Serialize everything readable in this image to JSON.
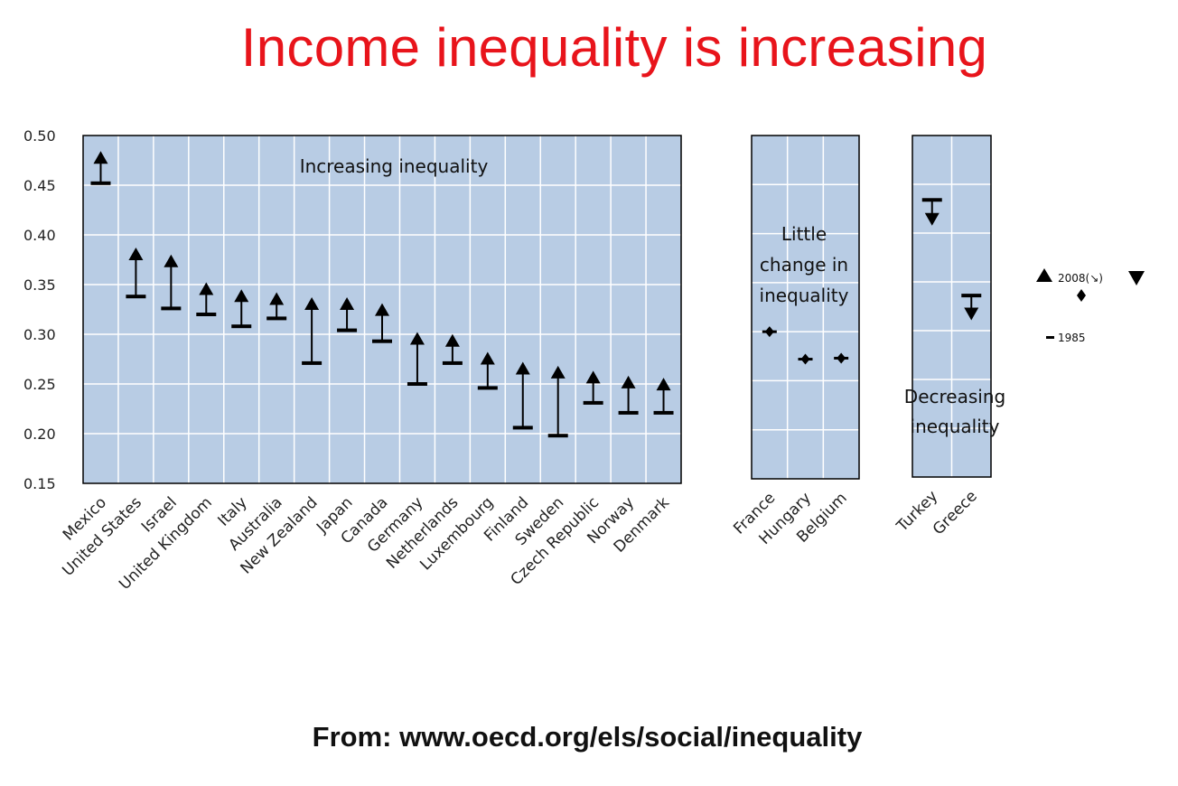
{
  "title": "Income inequality is increasing",
  "source": "From: www.oecd.org/els/social/inequality",
  "chart_data": {
    "type": "range-markers",
    "ylim": [
      0.15,
      0.5
    ],
    "yticks": [
      "0.50",
      "0.45",
      "0.40",
      "0.35",
      "0.30",
      "0.25",
      "0.20",
      "0.15"
    ],
    "grid": true,
    "colors": {
      "plot_bg": "#b8cce4",
      "grid": "#ffffff",
      "marker": "#000000"
    },
    "legend": {
      "position": "right",
      "label_2008": "2008(↘)",
      "label_1985": "1985"
    },
    "panels": [
      {
        "id": "increasing",
        "annotation": [
          "Increasing inequality"
        ],
        "countries": [
          {
            "name": "Mexico",
            "v1985": 0.452,
            "v2008": 0.477
          },
          {
            "name": "United States",
            "v1985": 0.338,
            "v2008": 0.38
          },
          {
            "name": "Israel",
            "v1985": 0.326,
            "v2008": 0.373
          },
          {
            "name": "United Kingdom",
            "v1985": 0.32,
            "v2008": 0.345
          },
          {
            "name": "Italy",
            "v1985": 0.308,
            "v2008": 0.338
          },
          {
            "name": "Australia",
            "v1985": 0.316,
            "v2008": 0.335
          },
          {
            "name": "New Zealand",
            "v1985": 0.271,
            "v2008": 0.33
          },
          {
            "name": "Japan",
            "v1985": 0.304,
            "v2008": 0.33
          },
          {
            "name": "Canada",
            "v1985": 0.293,
            "v2008": 0.324
          },
          {
            "name": "Germany",
            "v1985": 0.25,
            "v2008": 0.295
          },
          {
            "name": "Netherlands",
            "v1985": 0.271,
            "v2008": 0.293
          },
          {
            "name": "Luxembourg",
            "v1985": 0.246,
            "v2008": 0.275
          },
          {
            "name": "Finland",
            "v1985": 0.206,
            "v2008": 0.265
          },
          {
            "name": "Sweden",
            "v1985": 0.198,
            "v2008": 0.261
          },
          {
            "name": "Czech Republic",
            "v1985": 0.231,
            "v2008": 0.256
          },
          {
            "name": "Norway",
            "v1985": 0.221,
            "v2008": 0.251
          },
          {
            "name": "Denmark",
            "v1985": 0.221,
            "v2008": 0.249
          }
        ]
      },
      {
        "id": "little-change",
        "annotation": [
          "Little",
          "change in",
          "inequality"
        ],
        "countries": [
          {
            "name": "France",
            "v1985": 0.3,
            "v2008": 0.3
          },
          {
            "name": "Hungary",
            "v1985": 0.272,
            "v2008": 0.272
          },
          {
            "name": "Belgium",
            "v1985": 0.273,
            "v2008": 0.273
          }
        ]
      },
      {
        "id": "decreasing",
        "annotation": [
          "Decreasing",
          "inequality"
        ],
        "countries": [
          {
            "name": "Turkey",
            "v1985": 0.434,
            "v2008": 0.415
          },
          {
            "name": "Greece",
            "v1985": 0.336,
            "v2008": 0.318
          }
        ]
      }
    ]
  }
}
